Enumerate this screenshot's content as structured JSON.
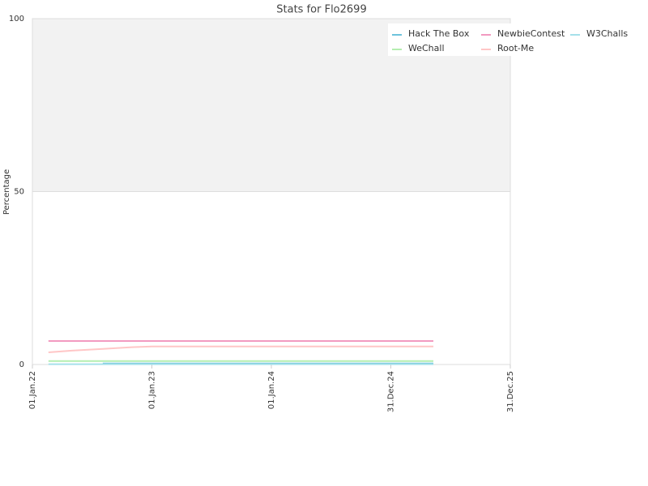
{
  "chart_data": {
    "type": "line",
    "title": "Stats for Flo2699",
    "y_label": "Percentage",
    "x": [
      "2022-02-19",
      "2022-05-01",
      "2022-08-04",
      "2022-11-01",
      "2023-01-01",
      "2024-01-01",
      "2025-05-10"
    ],
    "xlim": [
      "2022-01-01",
      "2025-12-31"
    ],
    "xticks": [
      {
        "value": "2022-01-01",
        "label": "01.Jan.22"
      },
      {
        "value": "2023-01-01",
        "label": "01.Jan.23"
      },
      {
        "value": "2024-01-01",
        "label": "01.Jan.24"
      },
      {
        "value": "2024-12-31",
        "label": "31.Dec.24"
      },
      {
        "value": "2025-12-31",
        "label": "31.Dec.25"
      }
    ],
    "ylim": [
      0,
      100
    ],
    "yticks": [
      0,
      50,
      100
    ],
    "grid": true,
    "series": [
      {
        "name": "Hack The Box",
        "color": "#6ec3dc",
        "values": [
          null,
          null,
          0.3,
          0.3,
          0.3,
          0.3,
          0.3
        ]
      },
      {
        "name": "WeChall",
        "color": "#b4eeb0",
        "values": [
          1.0,
          1.0,
          1.0,
          1.0,
          1.0,
          1.0,
          1.0
        ]
      },
      {
        "name": "NewbieContest",
        "color": "#f29ac0",
        "values": [
          6.8,
          6.8,
          6.8,
          6.8,
          6.8,
          6.8,
          6.8
        ]
      },
      {
        "name": "Root-Me",
        "color": "#ffc6c6",
        "values": [
          3.5,
          4.0,
          4.5,
          5.0,
          5.2,
          5.2,
          5.2
        ]
      },
      {
        "name": "W3Challs",
        "color": "#a6e0ea",
        "values": [
          0.1,
          0.1,
          0.1,
          0.1,
          0.1,
          0.1,
          0.1
        ]
      }
    ]
  }
}
